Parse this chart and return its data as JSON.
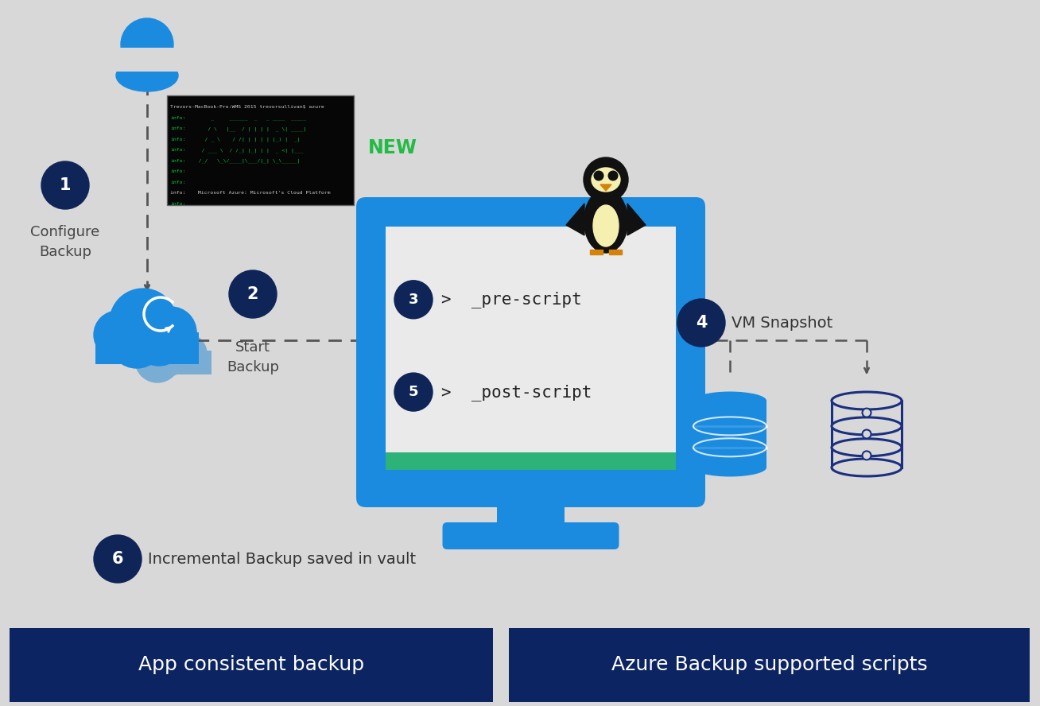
{
  "bg_color": "#d8d8d8",
  "azure_blue": "#1b8be0",
  "dark_navy": "#0f2457",
  "footer_bg": "#0c2461",
  "white": "#ffffff",
  "green_bar": "#2db37a",
  "dashed_color": "#555555",
  "new_green": "#22bb44",
  "terminal_bg": "#080808",
  "step1_label": "Configure\nBackup",
  "step2_label": "Start\nBackup",
  "step3_label": ">  _pre-script",
  "step4_label": "VM Snapshot",
  "step5_label": ">  _post-script",
  "step6_label": "Incremental Backup saved in vault",
  "footer_left": "App consistent backup",
  "footer_right": "Azure Backup supported scripts",
  "new_label": "NEW"
}
